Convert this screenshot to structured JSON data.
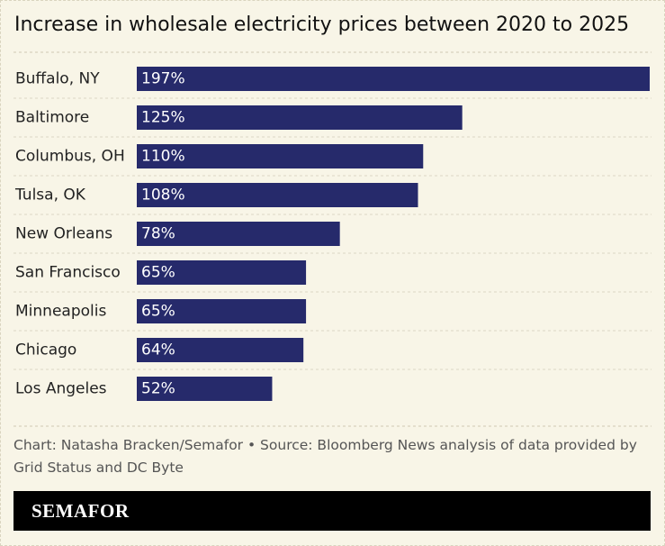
{
  "chart_data": {
    "type": "bar",
    "orientation": "horizontal",
    "title": "Increase in wholesale electricity prices between 2020 to 2025",
    "categories": [
      "Buffalo, NY",
      "Baltimore",
      "Columbus, OH",
      "Tulsa, OK",
      "New Orleans",
      "San Francisco",
      "Minneapolis",
      "Chicago",
      "Los Angeles"
    ],
    "values": [
      197,
      125,
      110,
      108,
      78,
      65,
      65,
      64,
      52
    ],
    "value_labels": [
      "197%",
      "125%",
      "110%",
      "108%",
      "78%",
      "65%",
      "65%",
      "64%",
      "52%"
    ],
    "color": "#262a6b",
    "source": "Chart: Natasha Bracken/Semafor • Source: Bloomberg News analysis of data provided by Grid Status and DC Byte"
  },
  "footer": {
    "logo": "SEMAFOR"
  }
}
